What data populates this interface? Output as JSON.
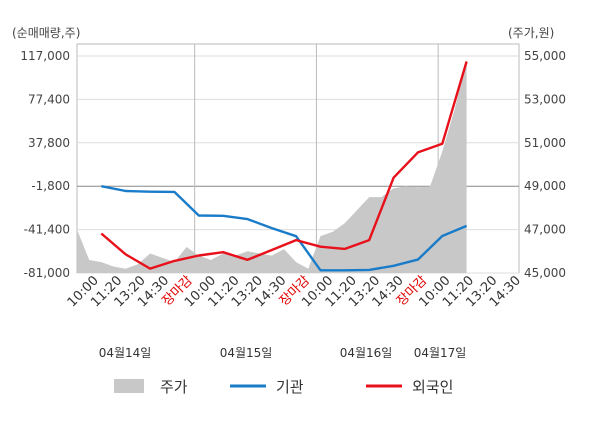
{
  "chart_data": {
    "type": "line",
    "left_unit": "(순매매량,주)",
    "right_unit": "(주가,원)",
    "y_left": {
      "range": [
        -81000,
        117000
      ],
      "ticks": [
        117000,
        77400,
        37800,
        -1800,
        -41400,
        -81000
      ],
      "tick_labels": [
        "117,000",
        "77,400",
        "37,800",
        "-1,800",
        "-41,400",
        "-81,000"
      ]
    },
    "y_right": {
      "range": [
        45000,
        55000
      ],
      "ticks": [
        55000,
        53000,
        51000,
        49000,
        47000,
        45000
      ],
      "tick_labels": [
        "55,000",
        "53,000",
        "51,000",
        "49,000",
        "47,000",
        "45,000"
      ]
    },
    "x_tick_labels": [
      "10:00",
      "11:20",
      "13:20",
      "14:30",
      "장마감",
      "10:00",
      "11:20",
      "13:20",
      "14:30",
      "장마감",
      "10:00",
      "11:20",
      "13:20",
      "14:30",
      "장마감",
      "10:00",
      "11:20",
      "13:20",
      "14:30"
    ],
    "x_close_label": "장마감",
    "date_labels": [
      "04월14일",
      "04월15일",
      "04월16일",
      "04월17일"
    ],
    "legend": [
      {
        "key": "price",
        "label": "주가",
        "color": "#c8c8c8"
      },
      {
        "key": "institution",
        "label": "기관",
        "color": "#1a7cc9"
      },
      {
        "key": "foreign",
        "label": "외국인",
        "color": "#e8101a"
      }
    ],
    "series": [
      {
        "name": "주가",
        "axis": "right",
        "x": [
          0,
          0.5,
          1,
          1.5,
          2,
          2.5,
          3,
          3.5,
          4,
          4.5,
          5,
          5.5,
          6,
          6.5,
          7,
          7.5,
          8,
          8.5,
          9,
          9.5,
          10,
          10.5,
          11,
          11.5,
          12,
          12.5,
          13,
          13.5,
          14,
          14.5,
          15,
          15.5,
          16
        ],
        "values": [
          47000,
          45600,
          45500,
          45300,
          45200,
          45400,
          45900,
          45700,
          45500,
          46200,
          45800,
          45600,
          45900,
          45800,
          46000,
          45900,
          45800,
          46100,
          45500,
          45200,
          46700,
          46900,
          47300,
          47900,
          48500,
          48500,
          48900,
          49000,
          48950,
          49000,
          50600,
          52500,
          54800
        ]
      },
      {
        "name": "기관",
        "axis": "left",
        "x": [
          1,
          2,
          3,
          4,
          5,
          6,
          7,
          8,
          9,
          10,
          11,
          12,
          13,
          14,
          15,
          16
        ],
        "values": [
          -1800,
          -6200,
          -6800,
          -7000,
          -28500,
          -28800,
          -31800,
          -40000,
          -47400,
          -78500,
          -78500,
          -78200,
          -74400,
          -68800,
          -47200,
          -38000
        ]
      },
      {
        "name": "외국인",
        "axis": "left",
        "x": [
          1,
          2,
          3,
          4,
          5,
          6,
          7,
          8,
          9,
          10,
          11,
          12,
          13,
          14,
          15,
          16
        ],
        "values": [
          -45000,
          -64000,
          -77000,
          -70000,
          -65000,
          -62000,
          -69000,
          -60000,
          -51000,
          -57000,
          -59000,
          -51000,
          6000,
          29000,
          37000,
          112000
        ]
      }
    ]
  }
}
